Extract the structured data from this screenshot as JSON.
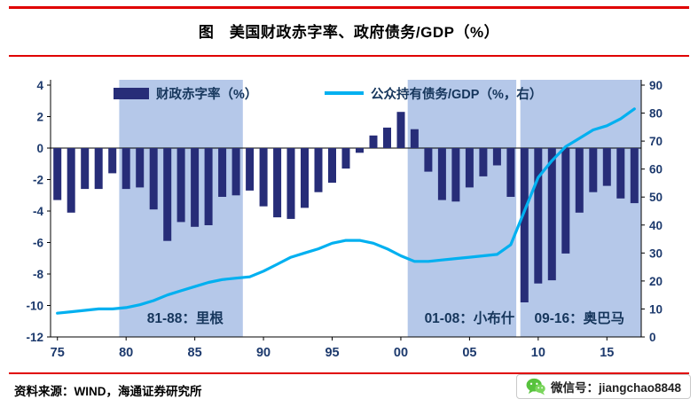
{
  "page": {
    "title": "图　美国财政赤字率、政府债务/GDP（%）",
    "accent_red": "#e00000",
    "footer": {
      "source": "资料来源：WIND，海通证券研究所",
      "wechat_label": "微信号：jiangchao8848",
      "wechat_green": "#57c23d"
    }
  },
  "chart_data": {
    "type": "bar+line",
    "title": "图　美国财政赤字率、政府债务/GDP（%）",
    "x_years": [
      1975,
      1976,
      1977,
      1978,
      1979,
      1980,
      1981,
      1982,
      1983,
      1984,
      1985,
      1986,
      1987,
      1988,
      1989,
      1990,
      1991,
      1992,
      1993,
      1994,
      1995,
      1996,
      1997,
      1998,
      1999,
      2000,
      2001,
      2002,
      2003,
      2004,
      2005,
      2006,
      2007,
      2008,
      2009,
      2010,
      2011,
      2012,
      2013,
      2014,
      2015,
      2016,
      2017
    ],
    "x_tick_years": [
      1975,
      1980,
      1985,
      1990,
      1995,
      2000,
      2005,
      2010,
      2015
    ],
    "x_tick_labels": [
      "75",
      "80",
      "85",
      "90",
      "95",
      "00",
      "05",
      "10",
      "15"
    ],
    "left_axis": {
      "min": -12,
      "max": 4,
      "ticks": [
        4,
        2,
        0,
        -2,
        -4,
        -6,
        -8,
        -10,
        -12
      ]
    },
    "right_axis": {
      "min": 0,
      "max": 90,
      "ticks": [
        90,
        80,
        70,
        60,
        50,
        40,
        30,
        20,
        10,
        0
      ]
    },
    "series": [
      {
        "name": "财政赤字率（%）",
        "type": "bar",
        "axis": "left",
        "color": "#272d78",
        "values": [
          -3.3,
          -4.1,
          -2.6,
          -2.6,
          -1.6,
          -2.6,
          -2.5,
          -3.9,
          -5.9,
          -4.7,
          -5.0,
          -4.9,
          -3.1,
          -3.0,
          -2.7,
          -3.7,
          -4.4,
          -4.5,
          -3.8,
          -2.8,
          -2.2,
          -1.3,
          -0.3,
          0.8,
          1.3,
          2.3,
          1.2,
          -1.5,
          -3.3,
          -3.4,
          -2.5,
          -1.8,
          -1.1,
          -3.1,
          -9.8,
          -8.6,
          -8.4,
          -6.7,
          -4.1,
          -2.8,
          -2.4,
          -3.2,
          -3.5
        ]
      },
      {
        "name": "公众持有债务/GDP（%，右）",
        "type": "line",
        "axis": "right",
        "color": "#00b0f0",
        "values": [
          8.5,
          9,
          9.5,
          10,
          10,
          10.5,
          11.5,
          13,
          15,
          16.5,
          18,
          19.5,
          20.5,
          21,
          21.5,
          23.5,
          26,
          28.5,
          30,
          31.5,
          33.5,
          34.5,
          34.5,
          33.5,
          31.5,
          29,
          27,
          27,
          27.5,
          28,
          28.5,
          29,
          29.5,
          33,
          45,
          57,
          63,
          68,
          71,
          74,
          75.5,
          78,
          81.5
        ]
      }
    ],
    "bands": [
      {
        "label": "81-88：里根",
        "from_year": 1979.5,
        "to_year": 1988.5,
        "label_year": 1984.3
      },
      {
        "label": "01-08：小布什",
        "from_year": 2000.5,
        "to_year": 2008.4,
        "label_year": 2005.0
      },
      {
        "label": "09-16：奥巴马",
        "from_year": 2008.7,
        "to_year": 2017.5,
        "label_year": 2013.0
      }
    ],
    "band_color": "#b5c8e9",
    "grid": false,
    "legend_position": "top-inside"
  }
}
